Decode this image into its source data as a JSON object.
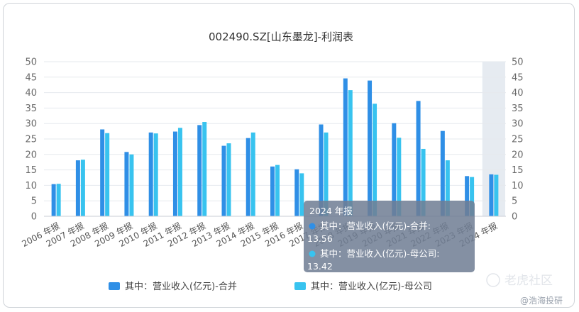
{
  "chart_data": {
    "type": "bar",
    "title": "002490.SZ[山东墨龙]-利润表",
    "categories": [
      "2006 年报",
      "2007 年报",
      "2008 年报",
      "2009 年报",
      "2010 年报",
      "2011 年报",
      "2012 年报",
      "2013 年报",
      "2014 年报",
      "2015 年报",
      "2016 年报",
      "2017 年报",
      "2018 年报",
      "2019 年报",
      "2020 年报",
      "2021 年报",
      "2022 年报",
      "2023 年报",
      "2024 年报"
    ],
    "series": [
      {
        "name": "其中：营业收入(亿元)-合并",
        "color": "#2f8fe6",
        "values": [
          10.4,
          18.1,
          28.1,
          20.8,
          27.1,
          27.4,
          29.5,
          22.8,
          25.3,
          16.1,
          15.2,
          29.7,
          44.6,
          43.9,
          30.1,
          37.3,
          27.6,
          13.0,
          13.56
        ]
      },
      {
        "name": "其中：营业收入(亿元)-母公司",
        "color": "#38c3ef",
        "values": [
          10.5,
          18.3,
          26.9,
          20.0,
          26.8,
          28.6,
          30.5,
          23.6,
          27.1,
          16.6,
          13.9,
          27.1,
          40.8,
          36.4,
          25.4,
          21.8,
          18.1,
          12.7,
          13.42
        ]
      }
    ],
    "y_left": {
      "min": 0,
      "max": 50,
      "ticks": [
        0,
        5,
        10,
        15,
        20,
        25,
        30,
        35,
        40,
        45,
        50
      ]
    },
    "y_right": {
      "min": 0,
      "max": 50,
      "ticks": [
        0,
        5,
        10,
        15,
        20,
        25,
        30,
        35,
        40,
        45,
        50
      ]
    },
    "grid": true,
    "legend": "bottom-center",
    "highlighted_category": "2024 年报",
    "tooltip": {
      "title": "2024 年报",
      "rows": [
        {
          "label": "其中：营业收入(亿元)-合并:",
          "value": "13.56",
          "color": "#2f8fe6"
        },
        {
          "label": "其中：营业收入(亿元)-母公司:",
          "value": "13.42",
          "color": "#38c3ef"
        }
      ]
    }
  },
  "watermark": {
    "brand": "老虎社区",
    "author": "@浩海投研"
  }
}
